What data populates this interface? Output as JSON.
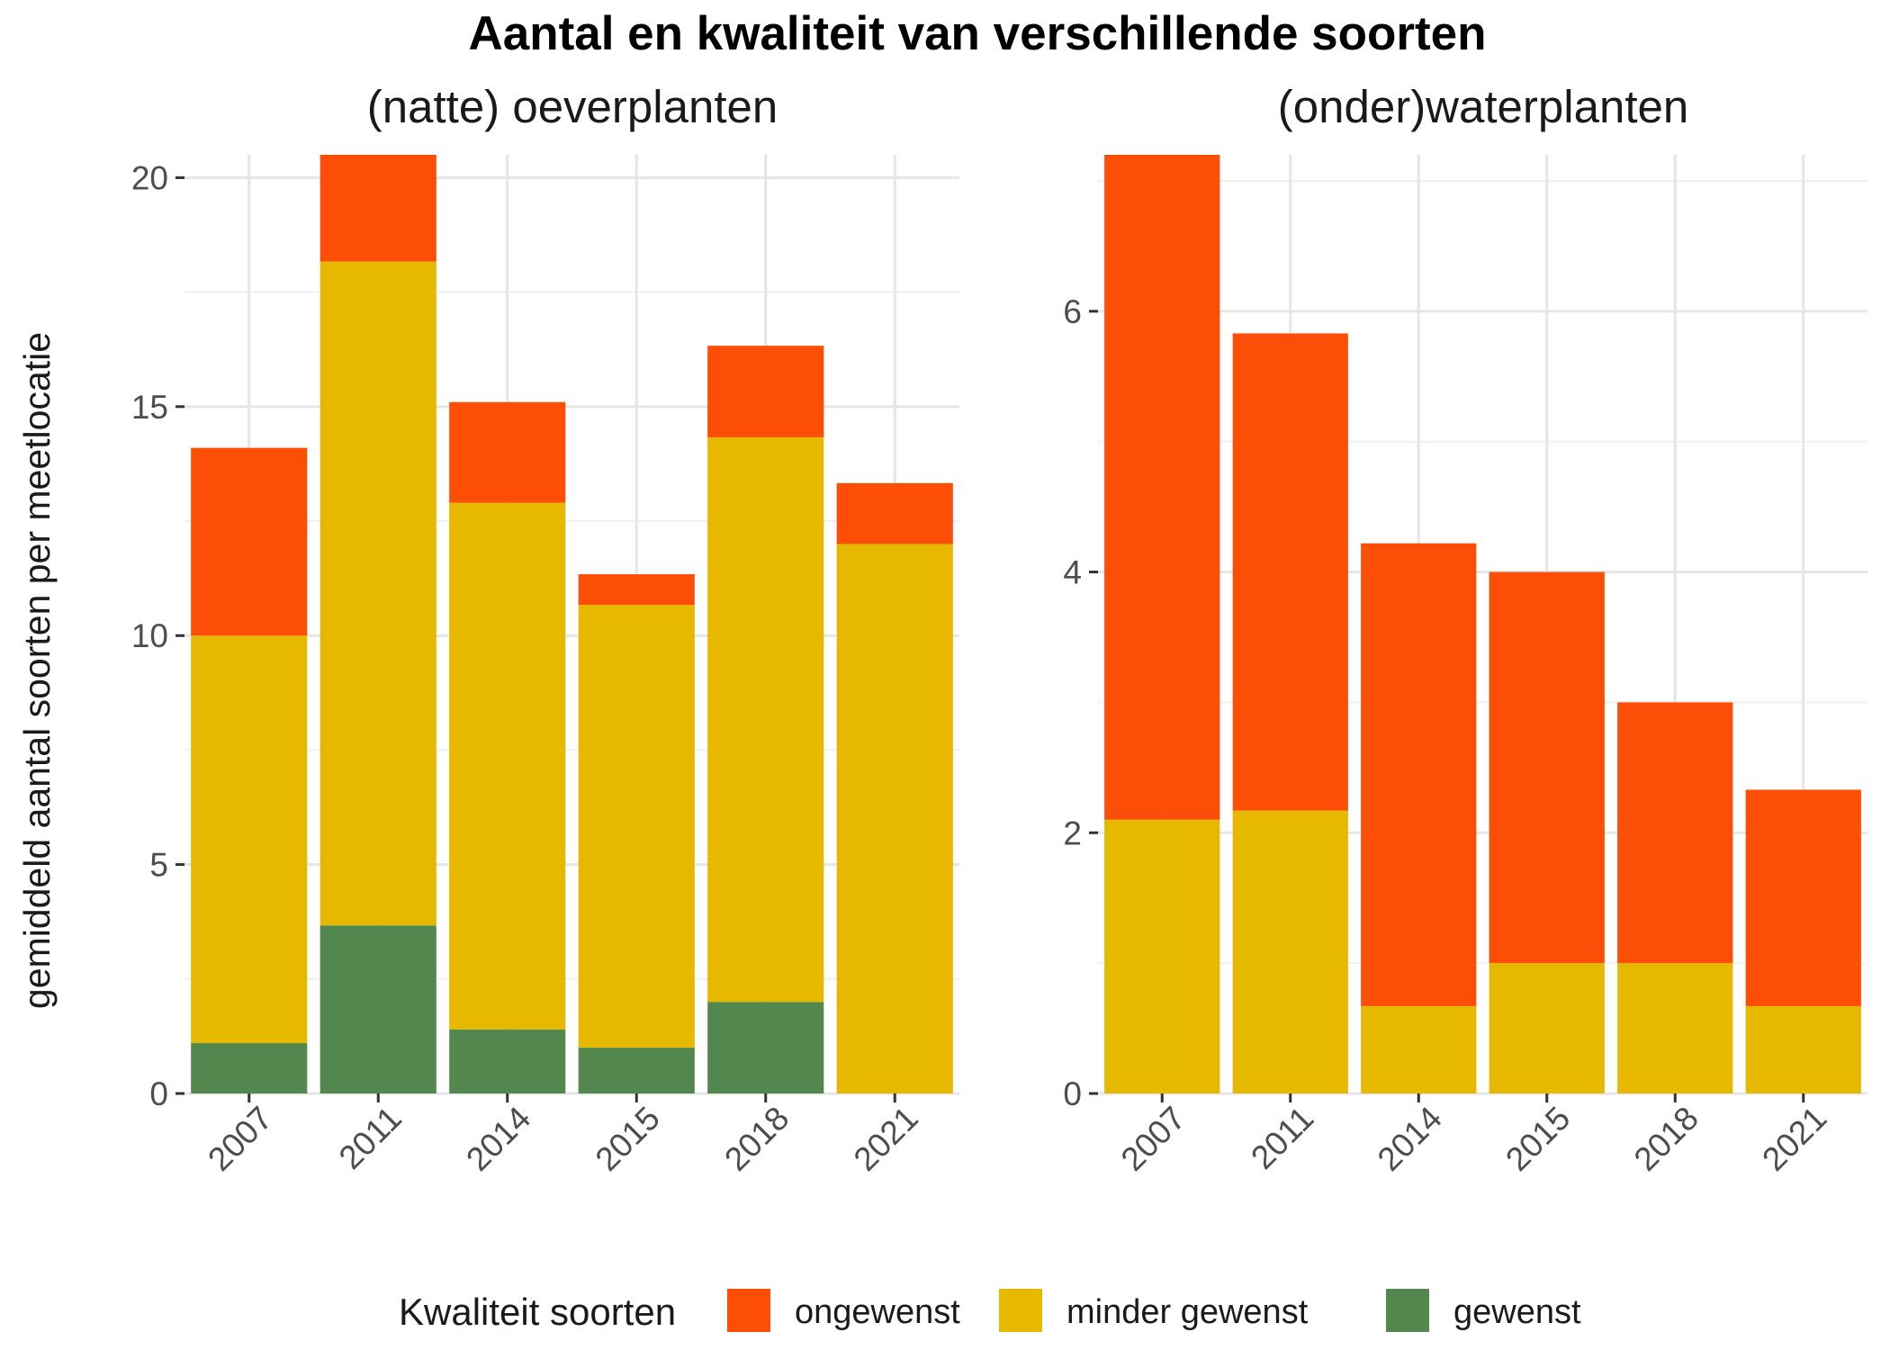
{
  "chart_data": {
    "type": "bar",
    "stacked": true,
    "title": "Aantal en kwaliteit van verschillende soorten",
    "ylabel": "gemiddeld aantal soorten per meetlocatie",
    "grid": true,
    "legend": {
      "placement": "bottom",
      "title": "Kwaliteit soorten",
      "items": [
        {
          "name": "ongewenst",
          "color": "#FC4E07"
        },
        {
          "name": "minder gewenst",
          "color": "#E7B800"
        },
        {
          "name": "gewenst",
          "color": "#52884E"
        }
      ]
    },
    "panels": [
      {
        "subtitle": "(natte) oeverplanten",
        "categories": [
          "2007",
          "2011",
          "2014",
          "2015",
          "2018",
          "2021"
        ],
        "ylim": [
          0,
          20.5
        ],
        "yticks": [
          0,
          5,
          10,
          15,
          20
        ],
        "ytick_labels": [
          "0",
          "5",
          "10",
          "15",
          "20"
        ],
        "series": [
          {
            "name": "gewenst",
            "color": "#52884E",
            "values": [
              1.1,
              3.67,
              1.4,
              1.0,
              2.0,
              0
            ]
          },
          {
            "name": "minder gewenst",
            "color": "#E7B800",
            "values": [
              8.9,
              14.5,
              11.5,
              9.67,
              12.33,
              12.0
            ]
          },
          {
            "name": "ongewenst",
            "color": "#FC4E07",
            "values": [
              4.1,
              2.33,
              2.2,
              0.67,
              2.0,
              1.33
            ]
          }
        ]
      },
      {
        "subtitle": "(onder)waterplanten",
        "categories": [
          "2007",
          "2011",
          "2014",
          "2015",
          "2018",
          "2021"
        ],
        "ylim": [
          0,
          7.2
        ],
        "yticks": [
          0,
          2,
          4,
          6
        ],
        "ytick_labels": [
          "0",
          "2",
          "4",
          "6"
        ],
        "series": [
          {
            "name": "gewenst",
            "color": "#52884E",
            "values": [
              0,
              0,
              0,
              0,
              0,
              0
            ]
          },
          {
            "name": "minder gewenst",
            "color": "#E7B800",
            "values": [
              2.1,
              2.17,
              0.67,
              1.0,
              1.0,
              0.67
            ]
          },
          {
            "name": "ongewenst",
            "color": "#FC4E07",
            "values": [
              5.1,
              3.66,
              3.55,
              3.0,
              2.0,
              1.66
            ]
          }
        ]
      }
    ]
  }
}
